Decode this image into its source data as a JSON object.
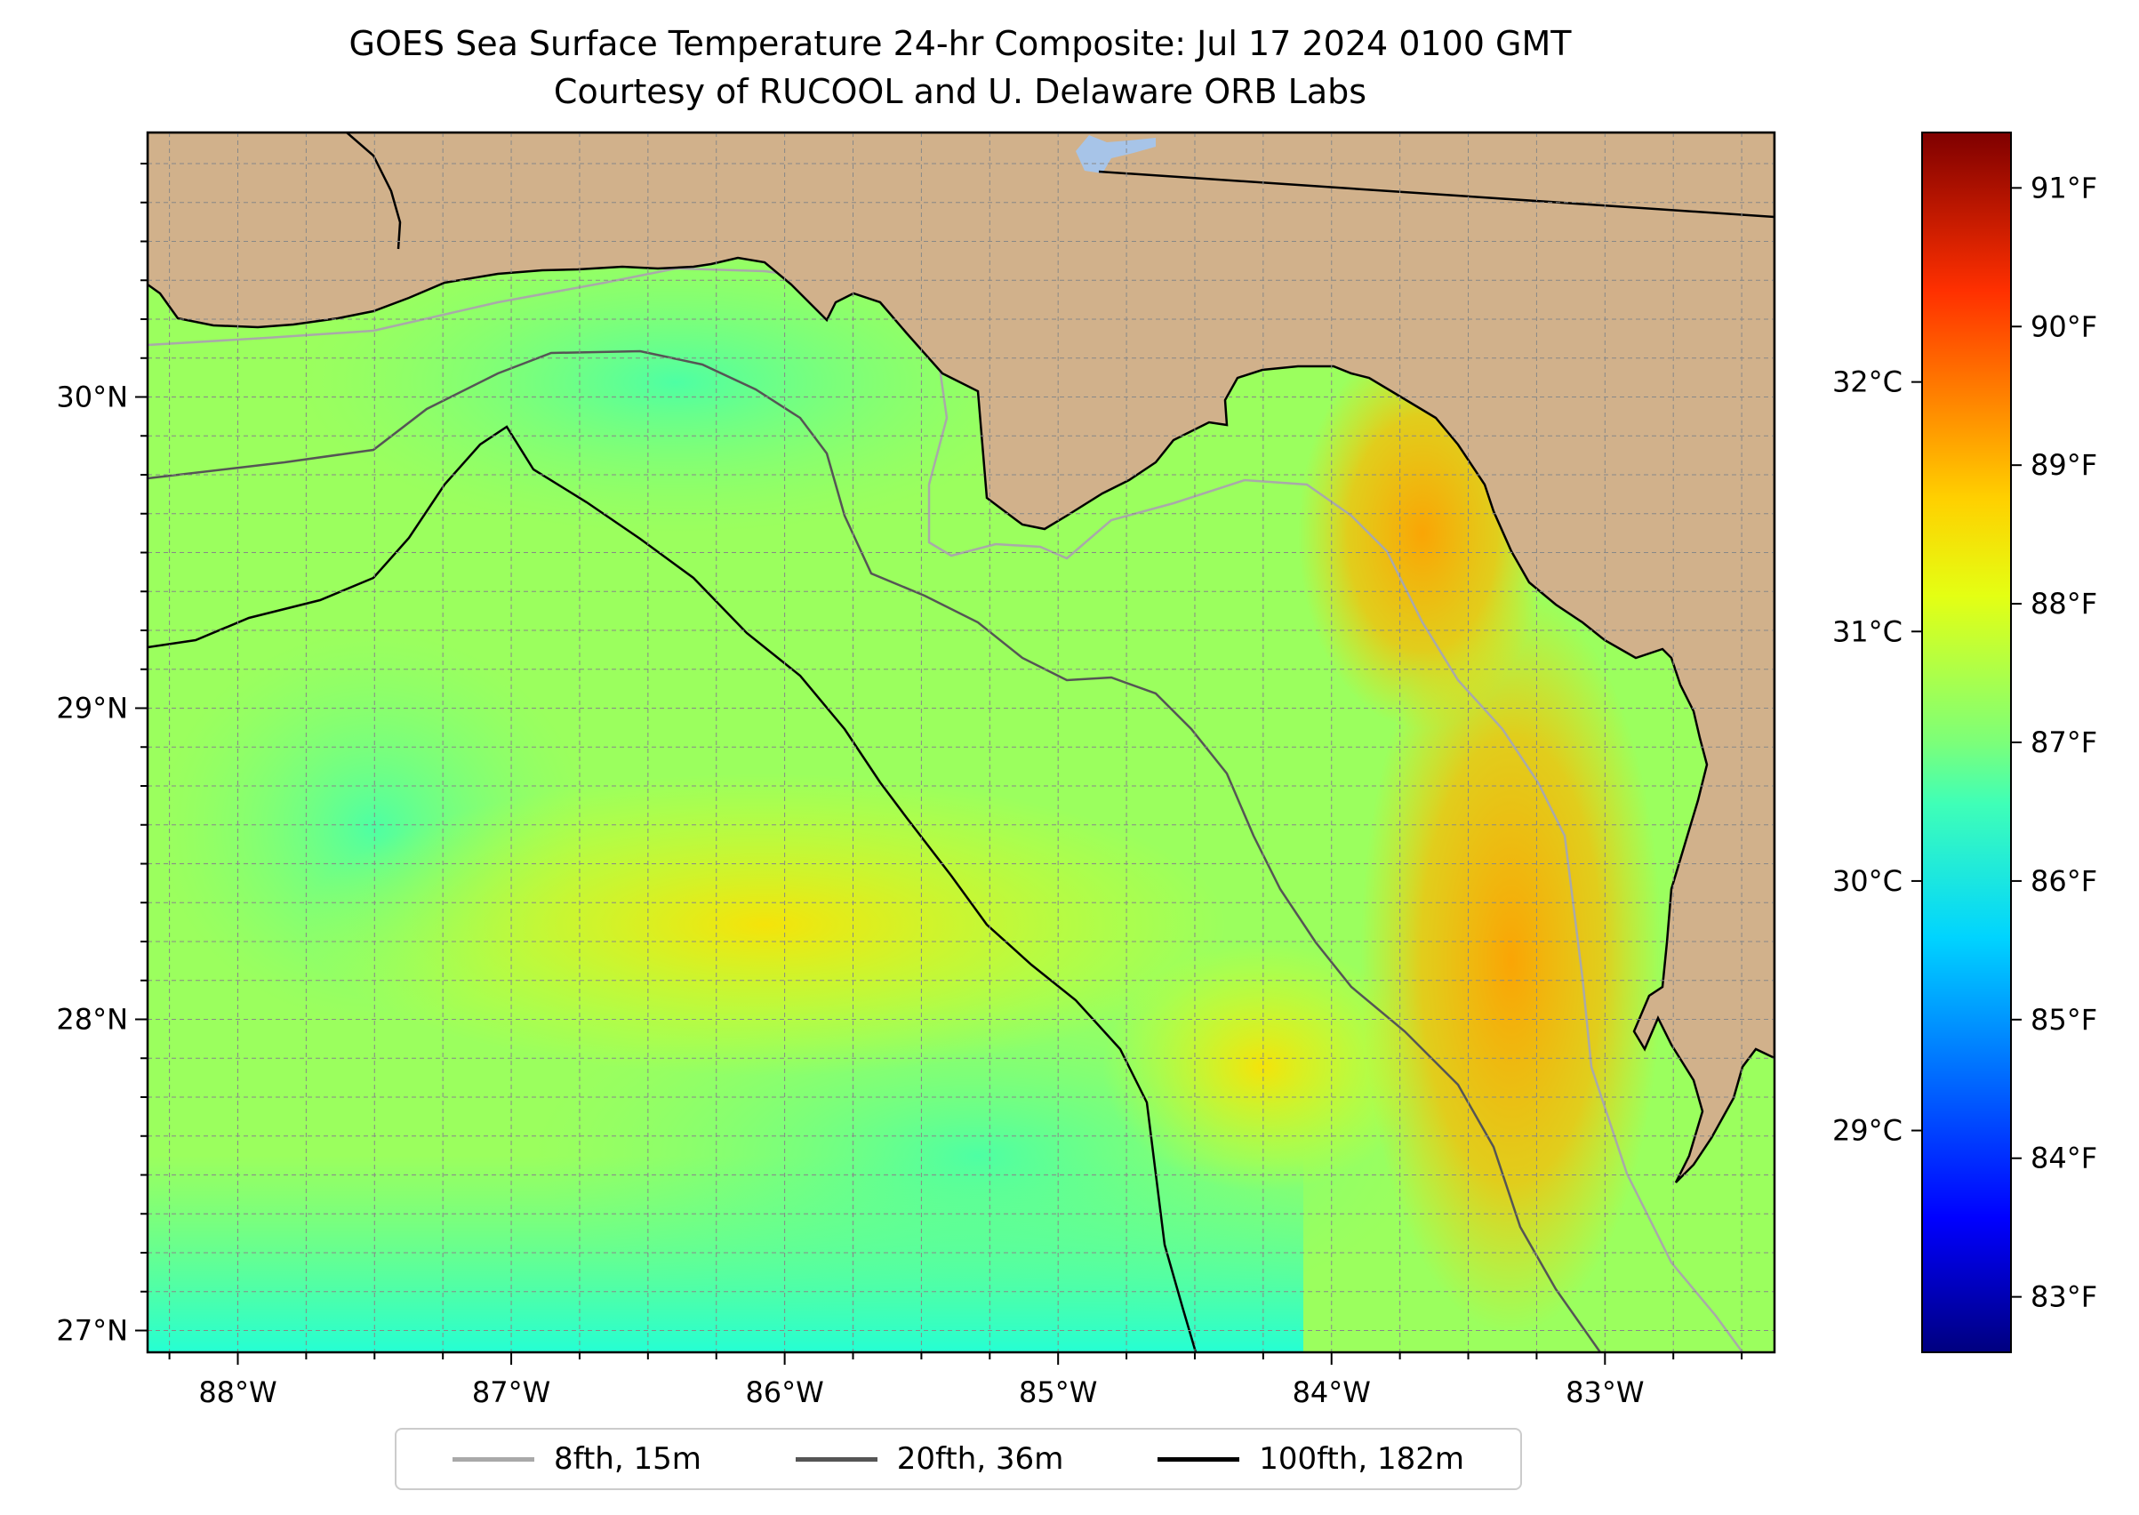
{
  "title": "GOES Sea Surface Temperature 24-hr Composite: Jul 17 2024 0100 GMT",
  "subtitle": "Courtesy of RUCOOL and U. Delaware ORB Labs",
  "map": {
    "lon_range": [
      -88.33,
      -82.38
    ],
    "lat_range": [
      26.93,
      30.85
    ],
    "lon_ticks": [
      "88°W",
      "87°W",
      "86°W",
      "85°W",
      "84°W",
      "83°W"
    ],
    "lon_tick_values": [
      -88,
      -87,
      -86,
      -85,
      -84,
      -83
    ],
    "lat_ticks": [
      "27°N",
      "28°N",
      "29°N",
      "30°N"
    ],
    "lat_tick_values": [
      27,
      28,
      29,
      30
    ],
    "grid": true,
    "colors": {
      "land": "#d1b18b",
      "lake": "#a7c4e8",
      "coast": "#000000",
      "contour_8fth": "#a9a9a9",
      "contour_20fth": "#555555",
      "contour_100fth": "#000000"
    }
  },
  "colorbar": {
    "celsius_ticks": [
      "29°C",
      "30°C",
      "31°C",
      "32°C"
    ],
    "celsius_values": [
      29,
      30,
      31,
      32
    ],
    "fahrenheit_ticks": [
      "83°F",
      "84°F",
      "85°F",
      "86°F",
      "87°F",
      "88°F",
      "89°F",
      "90°F",
      "91°F"
    ],
    "fahrenheit_values": [
      83,
      84,
      85,
      86,
      87,
      88,
      89,
      90,
      91
    ],
    "range_f": [
      82.6,
      91.4
    ],
    "colormap": "jet"
  },
  "legend": {
    "items": [
      {
        "label": "8fth, 15m",
        "color": "#a9a9a9"
      },
      {
        "label": "20fth, 36m",
        "color": "#555555"
      },
      {
        "label": "100fth, 182m",
        "color": "#000000"
      }
    ]
  }
}
